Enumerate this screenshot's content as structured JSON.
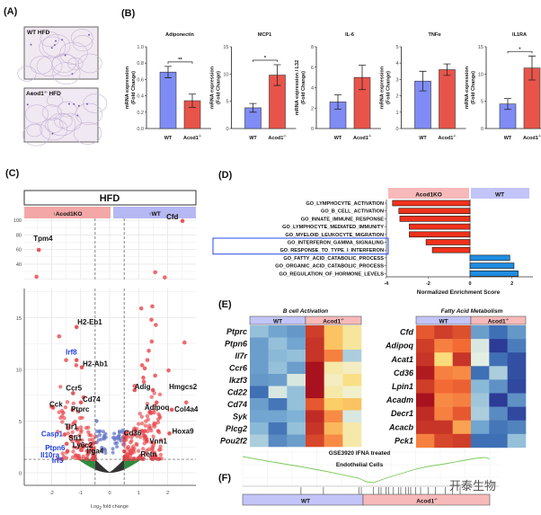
{
  "panel_labels": {
    "a": "(A)",
    "b": "(B)",
    "c": "(C)",
    "d": "(D)",
    "e": "(E)",
    "f": "(F)"
  },
  "panel_a": {
    "images": [
      {
        "label": "WT HFD"
      },
      {
        "label_main": "Acod1",
        "label_sup": "-/-",
        "label_tail": " HFD"
      }
    ]
  },
  "genotypes": {
    "wt": "WT",
    "ko": "Acod1",
    "ko_sup": "-/-",
    "ko_label": "Acod1KO"
  },
  "chart_data": [
    {
      "type": "bar",
      "title": "Adiponectin",
      "ylabel": [
        "mRNA expression",
        "(Fold Change)"
      ],
      "categories": [
        "WT",
        "Acod1-/-"
      ],
      "values": [
        0.69,
        0.34
      ],
      "errors": [
        0.07,
        0.08
      ],
      "ylim": [
        0,
        1.0
      ],
      "yticks": [
        "0.0",
        "0.2",
        "0.4",
        "0.6",
        "0.8",
        "1.0"
      ],
      "significance": "**",
      "colors": [
        "#7f8cf5",
        "#e8544a"
      ]
    },
    {
      "type": "bar",
      "title": "MCP1",
      "ylabel": [
        "mRNA expression",
        "(Fold Change)"
      ],
      "categories": [
        "WT",
        "Acod1-/-"
      ],
      "values": [
        3.8,
        9.8
      ],
      "errors": [
        0.8,
        1.9
      ],
      "ylim": [
        0,
        15
      ],
      "yticks": [
        "0",
        "5",
        "10",
        "15"
      ],
      "significance": "*",
      "colors": [
        "#7f8cf5",
        "#e8544a"
      ]
    },
    {
      "type": "bar",
      "title": "IL-6",
      "ylabel": [
        "mRNA expression / L32",
        "(Fold Change)"
      ],
      "categories": [
        "WT",
        "Acod1-/-"
      ],
      "values": [
        2.6,
        5.0
      ],
      "errors": [
        0.7,
        1.2
      ],
      "ylim": [
        0,
        8
      ],
      "yticks": [
        "0",
        "2",
        "4",
        "6",
        "8"
      ],
      "significance": "",
      "colors": [
        "#7f8cf5",
        "#e8544a"
      ]
    },
    {
      "type": "bar",
      "title": "TNFα",
      "ylabel": [
        "mRNA expression",
        "(Fold Change)"
      ],
      "categories": [
        "WT",
        "Acod1-/-"
      ],
      "values": [
        2.9,
        3.6
      ],
      "errors": [
        0.6,
        0.35
      ],
      "ylim": [
        0,
        5
      ],
      "yticks": [
        "0",
        "1",
        "2",
        "3",
        "4",
        "5"
      ],
      "significance": "",
      "colors": [
        "#7f8cf5",
        "#e8544a"
      ]
    },
    {
      "type": "bar",
      "title": "IL1RA",
      "ylabel": [
        "mRNA expression",
        "(Fold Change)"
      ],
      "categories": [
        "WT",
        "Acod1-/-"
      ],
      "values": [
        4.5,
        11.1
      ],
      "errors": [
        1.0,
        2.2
      ],
      "ylim": [
        0,
        15
      ],
      "yticks": [
        "0",
        "5",
        "10",
        "15"
      ],
      "significance": "*",
      "colors": [
        "#7f8cf5",
        "#e8544a"
      ]
    },
    {
      "type": "scatter",
      "title": "HFD",
      "strip_left": "Acod1KO",
      "strip_right": "WT",
      "strip_arrow": "🠕",
      "xlabel_main": "Log",
      "xlabel_sub": "2",
      "xlabel_tail": " fold change",
      "xlim": [
        -3,
        3
      ],
      "xticks": [
        "-2",
        "-1",
        "0",
        "1",
        "2"
      ],
      "upper_yticks": [
        "40",
        "60",
        "80",
        "100"
      ],
      "lower_yticks": [
        "0",
        "5",
        "10",
        "15"
      ],
      "fc_threshold": 0.5,
      "p_threshold": 1.3,
      "colors": {
        "up": "#e8454a",
        "ns_fc": "#2e8b3e",
        "ns": "#333333",
        "sub": "#5d6fc4"
      },
      "labeled_genes": [
        {
          "gene": "Cfd",
          "x": 2.51,
          "y": 99,
          "color": "black"
        },
        {
          "gene": "Tpm4",
          "x": -2.44,
          "y": 59.5,
          "color": "black"
        },
        {
          "gene": "H2-Eb1",
          "x": -1.14,
          "y": 14.1,
          "color": "black"
        },
        {
          "gene": "Irf8",
          "x": -1.14,
          "y": 10.9,
          "color": "blue"
        },
        {
          "gene": "H2-Ab1",
          "x": -0.96,
          "y": 10.2,
          "color": "black"
        },
        {
          "gene": "Ccr5",
          "x": -1.26,
          "y": 7.7,
          "color": "black"
        },
        {
          "gene": "Cd74",
          "x": -0.99,
          "y": 6.8,
          "color": "black"
        },
        {
          "gene": "Cck",
          "x": -1.95,
          "y": 6.3,
          "color": "black"
        },
        {
          "gene": "Ptprc",
          "x": -1.27,
          "y": 6.1,
          "color": "black"
        },
        {
          "gene": "Tlr1",
          "x": -1.43,
          "y": 4.3,
          "color": "black"
        },
        {
          "gene": "Casp1",
          "x": -1.55,
          "y": 3.7,
          "color": "blue"
        },
        {
          "gene": "Sfi1",
          "x": -1.32,
          "y": 3.5,
          "color": "black"
        },
        {
          "gene": "Ptpn6",
          "x": -1.48,
          "y": 2.8,
          "color": "blue"
        },
        {
          "gene": "Ly6c2",
          "x": -1.06,
          "y": 2.8,
          "color": "black"
        },
        {
          "gene": "Itga4",
          "x": -0.6,
          "y": 2.2,
          "color": "black"
        },
        {
          "gene": "Il10ra",
          "x": -1.45,
          "y": 2.1,
          "color": "blue"
        },
        {
          "gene": "Irf5",
          "x": -1.06,
          "y": 1.4,
          "color": "blue"
        },
        {
          "gene": "Adig",
          "x": 0.86,
          "y": 8.0,
          "color": "black"
        },
        {
          "gene": "Hmgcs2",
          "x": 1.49,
          "y": 8.0,
          "color": "black"
        },
        {
          "gene": "Adipoq",
          "x": 1.39,
          "y": 5.9,
          "color": "black"
        },
        {
          "gene": "Col4a4",
          "x": 2.14,
          "y": 6.1,
          "color": "black"
        },
        {
          "gene": "Hoxa9",
          "x": 2.06,
          "y": 3.8,
          "color": "black"
        },
        {
          "gene": "Cd36",
          "x": 0.55,
          "y": 3.8,
          "color": "black"
        },
        {
          "gene": "Vnn1",
          "x": 1.28,
          "y": 3.1,
          "color": "black"
        },
        {
          "gene": "Retn",
          "x": 1.07,
          "y": 1.65,
          "color": "black"
        }
      ],
      "other_points": [
        [
          -2.52,
          22.9
        ],
        [
          1.57,
          29
        ],
        [
          1.9,
          22
        ],
        [
          -1.74,
          13.2
        ],
        [
          -1.5,
          10.9
        ],
        [
          -1.15,
          10.4
        ],
        [
          1.09,
          15.9
        ],
        [
          1.47,
          16.1
        ],
        [
          1.44,
          14.8
        ],
        [
          1.59,
          14.3
        ],
        [
          1.45,
          12.7
        ],
        [
          2.58,
          12.6
        ],
        [
          1.35,
          11.8
        ],
        [
          1.3,
          10.9
        ],
        [
          1.12,
          10.4
        ],
        [
          1.21,
          10.1
        ],
        [
          2.03,
          9.9
        ],
        [
          1.57,
          9.4
        ],
        [
          1.16,
          9.2
        ],
        [
          1.18,
          8.8
        ],
        [
          0.86,
          8.4
        ],
        [
          2.64,
          6.8
        ],
        [
          -2.0,
          6.4
        ],
        [
          -1.6,
          5.8
        ],
        [
          -0.9,
          7.3
        ]
      ]
    },
    {
      "type": "bar",
      "orientation": "horizontal",
      "header_left": "Acod1KO",
      "header_right": "WT",
      "xlabel": "Normalized Enrichment Score",
      "xlim": [
        -4,
        3
      ],
      "xticks": [
        "-4",
        "-2",
        "0",
        "2"
      ],
      "highlighted": [
        5,
        6
      ],
      "categories": [
        "GO_LYMPHOCYTE_ACTIVATION",
        "GO_B_CELL_ACTIVATION",
        "GO_INNATE_IMMUNE_RESPONSE",
        "GO_LYMPHOCYTE_MEDIATED_IMMUNITY",
        "GO_MYELOID_LEUKOCYTE_MIGRATION",
        "GO_INTERFERON_GAMMA_SIGNALING",
        "GO_RESPONSE_TO_TYPE_I_INTERFERON",
        "GO_FATTY_ACID_CATABOLIC_PROCESS",
        "GO_ORGANIC_ACID_CATABOLIC_PROCESS",
        "GO_REGULATION_OF_HORMONE_LEVELS"
      ],
      "values": [
        -3.7,
        -3.4,
        -3.35,
        -2.9,
        -2.9,
        -2.1,
        -1.8,
        1.9,
        2.1,
        2.3
      ],
      "colors": {
        "neg": "#f0321c",
        "pos": "#1f8ce0"
      }
    },
    {
      "type": "heatmap",
      "title": "B cell Activation",
      "groups": [
        "WT",
        "Acod1-/-"
      ],
      "rows": [
        "Ptprc",
        "Ptpn6",
        "Il7r",
        "Ccr6",
        "Ikzf3",
        "Cd22",
        "Cd74",
        "Syk",
        "Plcg2",
        "Pou2f2"
      ],
      "values": [
        [
          -0.8,
          -1.2,
          -1.4,
          2.5,
          1.2,
          0.6
        ],
        [
          -1.3,
          -0.8,
          -1.2,
          2.6,
          1.2,
          0.6
        ],
        [
          -1.3,
          -0.9,
          -0.8,
          2.6,
          1.8,
          -0.6
        ],
        [
          -1.3,
          -0.8,
          -1.3,
          3.0,
          0.5,
          0.3
        ],
        [
          -1.4,
          -1.3,
          -0.2,
          3.0,
          0.3,
          0.8
        ],
        [
          -2.0,
          -0.2,
          -0.8,
          3.0,
          0.5,
          0.2
        ],
        [
          -1.3,
          -1.9,
          -0.8,
          2.2,
          1.1,
          1.2
        ],
        [
          -1.2,
          -1.2,
          -1.0,
          2.7,
          1.7,
          -0.2
        ],
        [
          -0.9,
          -1.9,
          -0.8,
          2.6,
          1.3,
          0.5
        ],
        [
          -0.6,
          -1.6,
          -1.3,
          2.4,
          1.7,
          0.5
        ]
      ]
    },
    {
      "type": "heatmap",
      "title": "Fatty Acid Metabolism",
      "groups": [
        "WT",
        "Acod1-/-"
      ],
      "rows": [
        "Cfd",
        "Adipoq",
        "Acat1",
        "Cd36",
        "Lpin1",
        "Acadm",
        "Decr1",
        "Acacb",
        "Pck1"
      ],
      "values": [
        [
          2.2,
          2.5,
          2.3,
          -1.3,
          -2.0,
          -1.4
        ],
        [
          2.5,
          1.8,
          2.0,
          -0.2,
          -2.8,
          -1.8
        ],
        [
          2.6,
          0.9,
          2.6,
          -0.1,
          -2.0,
          -2.5
        ],
        [
          2.9,
          1.8,
          1.7,
          -2.0,
          -0.6,
          -2.5
        ],
        [
          2.5,
          2.0,
          2.1,
          -0.9,
          -1.5,
          -2.6
        ],
        [
          3.0,
          1.7,
          1.8,
          -0.7,
          -2.8,
          -1.5
        ],
        [
          2.7,
          1.8,
          2.2,
          -0.6,
          -1.6,
          -2.6
        ],
        [
          2.6,
          2.6,
          1.5,
          -1.2,
          -1.9,
          -1.7
        ],
        [
          1.8,
          2.4,
          2.5,
          -2.0,
          -2.0,
          -0.8
        ]
      ]
    },
    {
      "type": "line",
      "title_line1": "GSE3920 IFNA treated",
      "title_line2": "Endothelial Cells",
      "groups": [
        "WT",
        "Acod1-/-"
      ],
      "running_es": [
        [
          0,
          0.6
        ],
        [
          10,
          0.35
        ],
        [
          23,
          0.05
        ],
        [
          33,
          -0.2
        ],
        [
          47,
          -0.6
        ],
        [
          50,
          -0.8
        ],
        [
          53,
          -0.85
        ],
        [
          58,
          -0.6
        ],
        [
          64,
          -0.35
        ],
        [
          70,
          -0.1
        ],
        [
          75,
          0.05
        ],
        [
          82,
          0.2
        ],
        [
          88,
          0.35
        ],
        [
          94,
          0.5
        ],
        [
          98,
          0.55
        ],
        [
          100,
          0.48
        ]
      ],
      "hit_ranks": [
        23.6,
        32.7,
        47,
        48,
        53,
        55,
        56,
        58,
        59,
        61,
        63,
        64,
        66,
        67,
        68,
        70,
        72,
        75,
        78,
        82,
        85,
        88
      ],
      "line_color": "#7cc95a"
    }
  ],
  "watermark": "开泰生物"
}
